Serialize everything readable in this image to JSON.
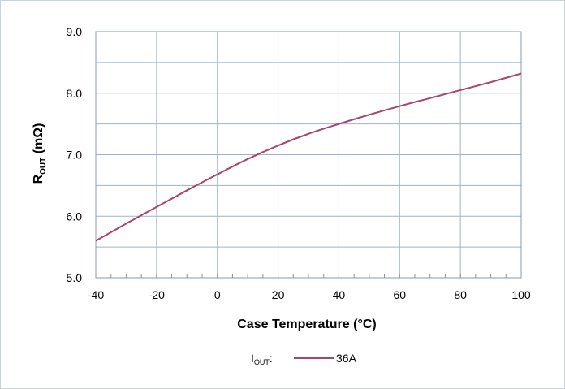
{
  "chart_data": {
    "type": "line",
    "xlabel": "Case Temperature (°C)",
    "ylabel": {
      "main": "R",
      "sub": "OUT",
      "unit": " (mΩ)"
    },
    "xlim": [
      -40,
      100
    ],
    "ylim": [
      5.0,
      9.0
    ],
    "x_ticks": [
      "-40",
      "-20",
      "0",
      "20",
      "40",
      "60",
      "80",
      "100"
    ],
    "y_ticks": [
      "5.0",
      "6.0",
      "7.0",
      "8.0",
      "9.0"
    ],
    "grid": true,
    "legend": {
      "label_main": "I",
      "label_sub": "OUT",
      "label_suffix": ":",
      "placement": "bottom"
    },
    "series": [
      {
        "name": "36A",
        "color": "#a8456f",
        "x": [
          -40,
          -30,
          -20,
          -10,
          0,
          10,
          20,
          30,
          40,
          50,
          60,
          70,
          80,
          90,
          100
        ],
        "y": [
          5.6,
          5.88,
          6.15,
          6.42,
          6.68,
          6.93,
          7.15,
          7.34,
          7.5,
          7.65,
          7.79,
          7.92,
          8.05,
          8.18,
          8.32
        ]
      }
    ]
  }
}
